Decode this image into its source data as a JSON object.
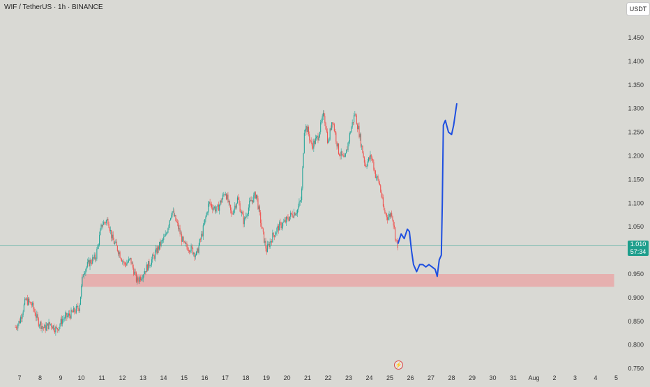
{
  "header": {
    "title": "WIF / TetherUS · 1h · BINANCE"
  },
  "toolbar": {
    "currency_label": "USDT"
  },
  "current_price": {
    "price": "1.010",
    "countdown": "57:34"
  },
  "event_icon": {
    "symbol": "⚡"
  },
  "colors": {
    "background": "#d9d9d4",
    "up_candle": "#26a69a",
    "down_candle": "#ef5350",
    "support_zone": "#e8a8a8",
    "projection_line": "#1e4fe0",
    "price_line": "#1e9e8c"
  },
  "chart_data": {
    "type": "candlestick",
    "symbol": "WIF / TetherUS",
    "interval": "1h",
    "exchange": "BINANCE",
    "currency": "USDT",
    "y_axis": {
      "ticks": [
        "1.450",
        "1.400",
        "1.350",
        "1.300",
        "1.250",
        "1.200",
        "1.150",
        "1.100",
        "1.050",
        "0.950",
        "0.900",
        "0.850",
        "0.800",
        "0.750"
      ],
      "tick_values": [
        1.45,
        1.4,
        1.35,
        1.3,
        1.25,
        1.2,
        1.15,
        1.1,
        1.05,
        0.95,
        0.9,
        0.85,
        0.8,
        0.75
      ]
    },
    "x_axis": {
      "ticks": [
        "7",
        "8",
        "9",
        "10",
        "11",
        "12",
        "13",
        "14",
        "15",
        "16",
        "17",
        "18",
        "19",
        "20",
        "21",
        "22",
        "23",
        "24",
        "25",
        "26",
        "27",
        "28",
        "29",
        "30",
        "31",
        "Aug",
        "2",
        "3",
        "4",
        "5"
      ],
      "tick_days": [
        7,
        8,
        9,
        10,
        11,
        12,
        13,
        14,
        15,
        16,
        17,
        18,
        19,
        20,
        21,
        22,
        23,
        24,
        25,
        26,
        27,
        28,
        29,
        30,
        31,
        32,
        33,
        34,
        35,
        36
      ]
    },
    "last_price": 1.01,
    "price_path": [
      [
        6.8,
        0.838
      ],
      [
        7.0,
        0.85
      ],
      [
        7.3,
        0.895
      ],
      [
        7.6,
        0.885
      ],
      [
        7.9,
        0.85
      ],
      [
        8.2,
        0.835
      ],
      [
        8.5,
        0.845
      ],
      [
        8.8,
        0.832
      ],
      [
        9.1,
        0.855
      ],
      [
        9.5,
        0.865
      ],
      [
        9.9,
        0.88
      ],
      [
        10.1,
        0.955
      ],
      [
        10.4,
        0.975
      ],
      [
        10.7,
        0.985
      ],
      [
        11.0,
        1.055
      ],
      [
        11.3,
        1.065
      ],
      [
        11.5,
        1.025
      ],
      [
        11.8,
        1.0
      ],
      [
        12.1,
        0.97
      ],
      [
        12.4,
        0.98
      ],
      [
        12.7,
        0.935
      ],
      [
        12.9,
        0.945
      ],
      [
        13.2,
        0.965
      ],
      [
        13.5,
        0.985
      ],
      [
        13.8,
        1.01
      ],
      [
        14.1,
        1.03
      ],
      [
        14.4,
        1.085
      ],
      [
        14.7,
        1.05
      ],
      [
        15.0,
        1.01
      ],
      [
        15.3,
        1.005
      ],
      [
        15.6,
        0.99
      ],
      [
        15.9,
        1.04
      ],
      [
        16.2,
        1.1
      ],
      [
        16.6,
        1.085
      ],
      [
        17.0,
        1.125
      ],
      [
        17.3,
        1.075
      ],
      [
        17.6,
        1.11
      ],
      [
        17.9,
        1.06
      ],
      [
        18.2,
        1.1
      ],
      [
        18.5,
        1.12
      ],
      [
        18.8,
        1.04
      ],
      [
        19.0,
        1.0
      ],
      [
        19.3,
        1.03
      ],
      [
        19.6,
        1.05
      ],
      [
        19.9,
        1.06
      ],
      [
        20.2,
        1.075
      ],
      [
        20.5,
        1.085
      ],
      [
        20.7,
        1.11
      ],
      [
        20.85,
        1.265
      ],
      [
        21.0,
        1.255
      ],
      [
        21.2,
        1.22
      ],
      [
        21.5,
        1.24
      ],
      [
        21.8,
        1.29
      ],
      [
        22.0,
        1.225
      ],
      [
        22.2,
        1.28
      ],
      [
        22.5,
        1.21
      ],
      [
        22.8,
        1.19
      ],
      [
        23.1,
        1.255
      ],
      [
        23.3,
        1.29
      ],
      [
        23.5,
        1.25
      ],
      [
        23.8,
        1.18
      ],
      [
        24.1,
        1.2
      ],
      [
        24.3,
        1.16
      ],
      [
        24.5,
        1.14
      ],
      [
        24.7,
        1.085
      ],
      [
        24.9,
        1.07
      ],
      [
        25.1,
        1.08
      ],
      [
        25.3,
        1.02
      ],
      [
        25.4,
        1.01
      ]
    ],
    "support_zone": {
      "from_day": 10.0,
      "to_day": 35.9,
      "low": 0.923,
      "high": 0.95
    },
    "projection": [
      [
        25.4,
        1.015
      ],
      [
        25.55,
        1.035
      ],
      [
        25.7,
        1.025
      ],
      [
        25.85,
        1.045
      ],
      [
        25.95,
        1.04
      ],
      [
        26.05,
        1.0
      ],
      [
        26.15,
        0.97
      ],
      [
        26.3,
        0.955
      ],
      [
        26.45,
        0.97
      ],
      [
        26.6,
        0.97
      ],
      [
        26.75,
        0.965
      ],
      [
        26.9,
        0.97
      ],
      [
        27.05,
        0.965
      ],
      [
        27.2,
        0.96
      ],
      [
        27.3,
        0.945
      ],
      [
        27.4,
        0.98
      ],
      [
        27.5,
        0.99
      ],
      [
        27.55,
        1.1
      ],
      [
        27.6,
        1.265
      ],
      [
        27.7,
        1.275
      ],
      [
        27.85,
        1.25
      ],
      [
        28.0,
        1.245
      ],
      [
        28.1,
        1.265
      ],
      [
        28.25,
        1.31
      ]
    ]
  }
}
